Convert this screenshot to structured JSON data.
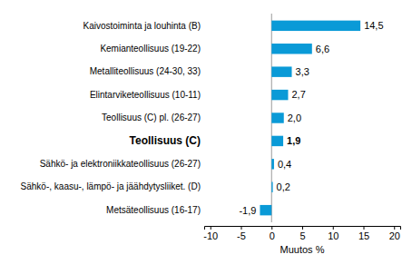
{
  "chart_data": {
    "type": "bar",
    "orientation": "horizontal",
    "categories": [
      "Kaivostoiminta  ja louhinta (B)",
      "Kemianteollisuus (19-22)",
      "Metalliteollisuus (24-30, 33)",
      "Elintarviketeollisuus (10-11)",
      "Teollisuus (C) pl. (26-27)",
      "Teollisuus (C)",
      "Sähkö- ja elektroniikkateollisuus (26-27)",
      "Sähkö-, kaasu-, lämpö- ja jäähdytysliiket. (D)",
      "Metsäteollisuus (16-17)"
    ],
    "values": [
      14.5,
      6.6,
      3.3,
      2.7,
      2.0,
      1.9,
      0.4,
      0.2,
      -1.9
    ],
    "value_labels": [
      "14,5",
      "6,6",
      "3,3",
      "2,7",
      "2,0",
      "1,9",
      "0,4",
      "0,2",
      "-1,9"
    ],
    "color": "#0a9ad7",
    "xlim": [
      -11,
      21
    ],
    "xticks": [
      -10,
      -5,
      0,
      5,
      10,
      15,
      20
    ],
    "x_label": "Muutos %",
    "data_labels": true,
    "grid": false
  }
}
